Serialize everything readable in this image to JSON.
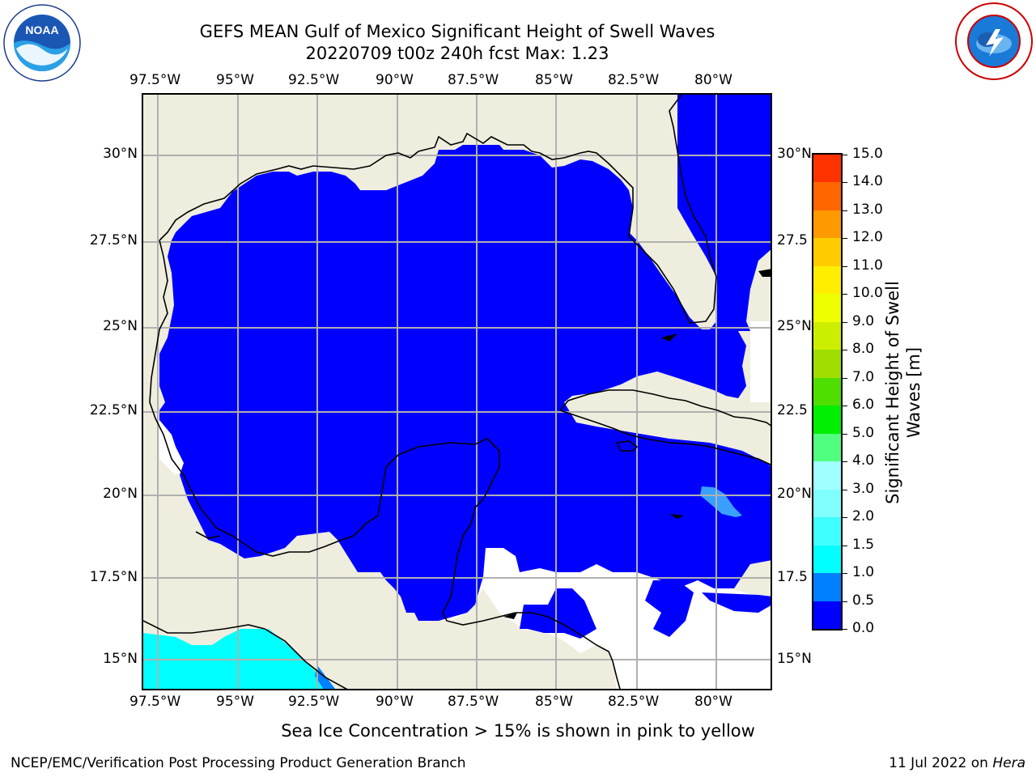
{
  "header": {
    "title_line1": "GEFS MEAN Gulf of Mexico Significant Height of Swell Waves",
    "title_line2": "20220709 t00z 240h fcst   Max: 1.23"
  },
  "logos": {
    "left": {
      "name": "noaa-logo",
      "text": "NOAA",
      "ring_text": "NATIONAL OCEANIC AND ATMOSPHERIC ADMINISTRATION · U.S. DEPARTMENT OF COMMERCE"
    },
    "right": {
      "name": "nws-logo",
      "ring_text": "NATIONAL WEATHER SERVICE"
    }
  },
  "map": {
    "region": "Gulf of Mexico",
    "lon_labels": [
      "97.5°W",
      "95°W",
      "92.5°W",
      "90°W",
      "87.5°W",
      "85°W",
      "82.5°W",
      "80°W"
    ],
    "lon_values": [
      -97.5,
      -95,
      -92.5,
      -90,
      -87.5,
      -85,
      -82.5,
      -80
    ],
    "lat_labels_left": [
      "30°N",
      "27.5°N",
      "25°N",
      "22.5°N",
      "20°N",
      "17.5°N",
      "15°N"
    ],
    "lat_labels_right": [
      "30°N",
      "27.5",
      "25°N",
      "22.5",
      "20°N",
      "17.5",
      "15°N"
    ],
    "lat_values": [
      30,
      27.5,
      25,
      22.5,
      20,
      17.5,
      15
    ],
    "extent": {
      "lon_min": -98,
      "lon_max": -78.2,
      "lat_min": 14,
      "lat_max": 31.8
    },
    "colors": {
      "land": "#eeedde",
      "ocean": "#0000ff",
      "grid": "#b0b0b0",
      "coast": "#000000",
      "nodata": "#ffffff",
      "swell_low": "#00ffff",
      "swell_mid": "#0080ff",
      "swell_patch": "#40a0ff"
    }
  },
  "colorbar": {
    "label": "Significant Height of Swell Waves [m]",
    "label_line1": "Significant Height of Swell",
    "label_line2": "Waves [m]",
    "ticks": [
      "0.0",
      "0.5",
      "1.0",
      "1.5",
      "2.0",
      "3.0",
      "4.0",
      "5.0",
      "6.0",
      "7.0",
      "8.0",
      "9.0",
      "10.0",
      "11.0",
      "12.0",
      "13.0",
      "14.0",
      "15.0"
    ],
    "colors": [
      "#0000ff",
      "#0080ff",
      "#00ffff",
      "#40ffff",
      "#80ffff",
      "#a0ffff",
      "#50ff80",
      "#00ee00",
      "#50dd00",
      "#a0dd00",
      "#ccee00",
      "#eeff00",
      "#ffee00",
      "#ffcc00",
      "#ff9900",
      "#ff6600",
      "#ff3300",
      "#ff0000"
    ]
  },
  "footnote": "Sea Ice Concentration > 15% is shown in pink to yellow",
  "footer": {
    "left": "NCEP/EMC/Verification Post Processing Product Generation Branch",
    "right_prefix": "11 Jul 2022 on ",
    "right_host": "Hera"
  }
}
